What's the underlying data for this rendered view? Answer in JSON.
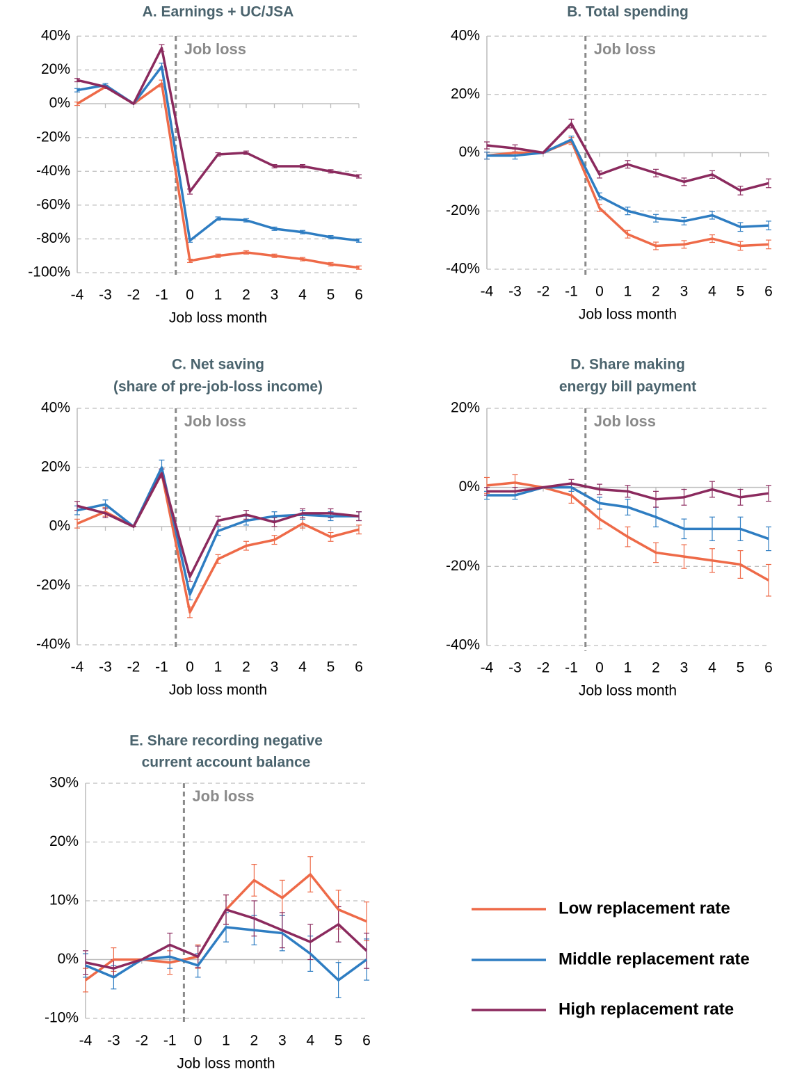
{
  "chart_data": [
    {
      "type": "line",
      "title": [
        "A. Earnings + UC/JSA"
      ],
      "x_label": "Job loss month",
      "annotation": {
        "text": "Job loss",
        "x": -0.5
      },
      "x": [
        -4,
        -3,
        -2,
        -1,
        0,
        1,
        2,
        3,
        4,
        5,
        6
      ],
      "ylim": [
        -100,
        40
      ],
      "yticks": [
        {
          "value": -100,
          "label": "-100%"
        },
        {
          "value": -80,
          "label": "-80%"
        },
        {
          "value": -60,
          "label": "-60%"
        },
        {
          "value": -40,
          "label": "-40%"
        },
        {
          "value": -20,
          "label": "-20%"
        },
        {
          "value": 0,
          "label": "0%"
        },
        {
          "value": 20,
          "label": "20%"
        },
        {
          "value": 40,
          "label": "40%"
        }
      ],
      "series": [
        {
          "name": "Low replacement rate",
          "color": "#ee6a48",
          "values": [
            0,
            10,
            0,
            12,
            -93,
            -90,
            -88,
            -90,
            -92,
            -95,
            -97
          ],
          "errors": [
            1,
            1,
            0,
            2,
            1,
            1,
            1,
            1,
            1,
            1,
            1
          ]
        },
        {
          "name": "Middle replacement rate",
          "color": "#2e7dc2",
          "values": [
            8,
            11,
            0,
            22,
            -81,
            -68,
            -69,
            -74,
            -76,
            -79,
            -81
          ],
          "errors": [
            1,
            1,
            0,
            2,
            1,
            1,
            1,
            1,
            1,
            1,
            1
          ]
        },
        {
          "name": "High replacement rate",
          "color": "#8b2a5e",
          "values": [
            14,
            10,
            0,
            33,
            -52,
            -30,
            -29,
            -37,
            -37,
            -40,
            -43
          ],
          "errors": [
            1,
            1,
            0,
            2,
            1.5,
            1,
            1,
            1,
            1,
            1,
            1
          ]
        }
      ]
    },
    {
      "type": "line",
      "title": [
        "B. Total spending"
      ],
      "x_label": "Job loss month",
      "annotation": {
        "text": "Job loss",
        "x": -0.5
      },
      "x": [
        -4,
        -3,
        -2,
        -1,
        0,
        1,
        2,
        3,
        4,
        5,
        6
      ],
      "ylim": [
        -40,
        40
      ],
      "yticks": [
        {
          "value": -40,
          "label": "-40%"
        },
        {
          "value": -20,
          "label": "-20%"
        },
        {
          "value": 0,
          "label": "0%"
        },
        {
          "value": 20,
          "label": "20%"
        },
        {
          "value": 40,
          "label": "40%"
        }
      ],
      "series": [
        {
          "color": "#ee6a48",
          "values": [
            -1,
            0,
            0,
            4,
            -19,
            -28,
            -32,
            -31.5,
            -29.5,
            -32,
            -31.5
          ],
          "errors": [
            1.2,
            1.2,
            0,
            1.2,
            1.2,
            1.3,
            1.3,
            1.3,
            1.3,
            1.5,
            1.5
          ]
        },
        {
          "color": "#2e7dc2",
          "values": [
            -1,
            -1,
            0,
            4.5,
            -15,
            -20,
            -22.5,
            -23.5,
            -21.5,
            -25.5,
            -25
          ],
          "errors": [
            1.2,
            1.2,
            0,
            1.2,
            1.2,
            1.3,
            1.3,
            1.3,
            1.3,
            1.5,
            1.5
          ]
        },
        {
          "color": "#8b2a5e",
          "values": [
            2.5,
            1.5,
            0,
            10,
            -7.5,
            -4,
            -7,
            -10,
            -7.5,
            -13,
            -10.5
          ],
          "errors": [
            1.2,
            1.2,
            0,
            1.5,
            1.2,
            1.3,
            1.3,
            1.3,
            1.3,
            1.5,
            1.5
          ]
        }
      ]
    },
    {
      "type": "line",
      "title": [
        "C. Net saving",
        "(share of pre-job-loss income)"
      ],
      "x_label": "Job loss month",
      "annotation": {
        "text": "Job loss",
        "x": -0.5
      },
      "x": [
        -4,
        -3,
        -2,
        -1,
        0,
        1,
        2,
        3,
        4,
        5,
        6
      ],
      "ylim": [
        -40,
        40
      ],
      "yticks": [
        {
          "value": -40,
          "label": "-40%"
        },
        {
          "value": -20,
          "label": "-20%"
        },
        {
          "value": 0,
          "label": "0%"
        },
        {
          "value": 20,
          "label": "20%"
        },
        {
          "value": 40,
          "label": "40%"
        }
      ],
      "series": [
        {
          "color": "#ee6a48",
          "values": [
            1,
            5,
            0,
            18,
            -29,
            -11,
            -6.5,
            -4.5,
            1,
            -3.5,
            -1
          ],
          "errors": [
            1.5,
            1.5,
            0,
            1.5,
            1.8,
            1.5,
            1.5,
            1.5,
            1.5,
            1.5,
            1.5
          ]
        },
        {
          "color": "#2e7dc2",
          "values": [
            5.5,
            7.5,
            0,
            20,
            -23,
            -1.5,
            2,
            3.5,
            4,
            3.5,
            3.5
          ],
          "errors": [
            1.5,
            1.5,
            0,
            2.5,
            1.8,
            1.5,
            1.5,
            1.5,
            1.5,
            1.5,
            1.5
          ]
        },
        {
          "color": "#8b2a5e",
          "values": [
            7,
            4.5,
            0,
            18,
            -17,
            2,
            4,
            1.5,
            4.5,
            4.5,
            3.5
          ],
          "errors": [
            1.5,
            1.5,
            0,
            1.5,
            1.5,
            1.5,
            1.5,
            1.5,
            1.5,
            1.5,
            1.5
          ]
        }
      ]
    },
    {
      "type": "line",
      "title": [
        "D. Share making",
        "energy bill payment"
      ],
      "x_label": "Job loss month",
      "annotation": {
        "text": "Job loss",
        "x": -0.5
      },
      "x": [
        -4,
        -3,
        -2,
        -1,
        0,
        1,
        2,
        3,
        4,
        5,
        6
      ],
      "ylim": [
        -40,
        20
      ],
      "yticks": [
        {
          "value": -40,
          "label": "-40%"
        },
        {
          "value": -20,
          "label": "-20%"
        },
        {
          "value": 0,
          "label": "0%"
        },
        {
          "value": 20,
          "label": "20%"
        }
      ],
      "series": [
        {
          "color": "#ee6a48",
          "values": [
            0.5,
            1.2,
            0,
            -2,
            -8,
            -12.5,
            -16.5,
            -17.5,
            -18.5,
            -19.5,
            -23.5
          ],
          "errors": [
            2,
            2,
            0,
            2,
            2.5,
            2.5,
            2.5,
            3,
            3,
            3.5,
            4
          ]
        },
        {
          "color": "#2e7dc2",
          "values": [
            -2,
            -2,
            0,
            0,
            -4,
            -5,
            -7.5,
            -10.5,
            -10.5,
            -10.5,
            -13
          ],
          "errors": [
            1,
            1,
            0,
            1,
            1.5,
            2,
            2.5,
            2.5,
            3,
            3,
            3
          ]
        },
        {
          "color": "#8b2a5e",
          "values": [
            -1,
            -1,
            0,
            1,
            -0.5,
            -1,
            -3,
            -2.5,
            -0.5,
            -2.5,
            -1.5
          ],
          "errors": [
            1,
            1,
            0,
            1,
            1.3,
            1.5,
            2,
            2,
            2,
            2,
            2
          ]
        }
      ]
    },
    {
      "type": "line",
      "title": [
        "E. Share recording negative",
        "current account balance"
      ],
      "x_label": "Job loss month",
      "annotation": {
        "text": "Job loss",
        "x": -0.5
      },
      "x": [
        -4,
        -3,
        -2,
        -1,
        0,
        1,
        2,
        3,
        4,
        5,
        6
      ],
      "ylim": [
        -10,
        30
      ],
      "yticks": [
        {
          "value": -10,
          "label": "-10%"
        },
        {
          "value": 0,
          "label": "0%"
        },
        {
          "value": 10,
          "label": "10%"
        },
        {
          "value": 20,
          "label": "20%"
        },
        {
          "value": 30,
          "label": "30%"
        }
      ],
      "series": [
        {
          "color": "#ee6a48",
          "values": [
            -3.5,
            0,
            0,
            -0.5,
            0.5,
            8.5,
            13.5,
            10.5,
            14.5,
            8.5,
            6.5
          ],
          "errors": [
            2,
            2,
            0,
            2,
            2,
            2.5,
            2.7,
            3,
            3,
            3.3,
            3.3
          ]
        },
        {
          "color": "#2e7dc2",
          "values": [
            -1,
            -3,
            0,
            0.5,
            -1,
            5.5,
            5,
            4.5,
            1,
            -3.5,
            0
          ],
          "errors": [
            2,
            2,
            0,
            2,
            2,
            2.5,
            2.5,
            3,
            3,
            3,
            3.5
          ]
        },
        {
          "color": "#8b2a5e",
          "values": [
            -0.5,
            -1.5,
            0,
            2.5,
            0.5,
            8.5,
            7,
            5,
            3,
            6,
            1.5
          ],
          "errors": [
            2,
            1.5,
            0,
            2,
            1.8,
            2.5,
            3,
            3,
            3,
            3,
            3
          ]
        }
      ]
    }
  ]
}
